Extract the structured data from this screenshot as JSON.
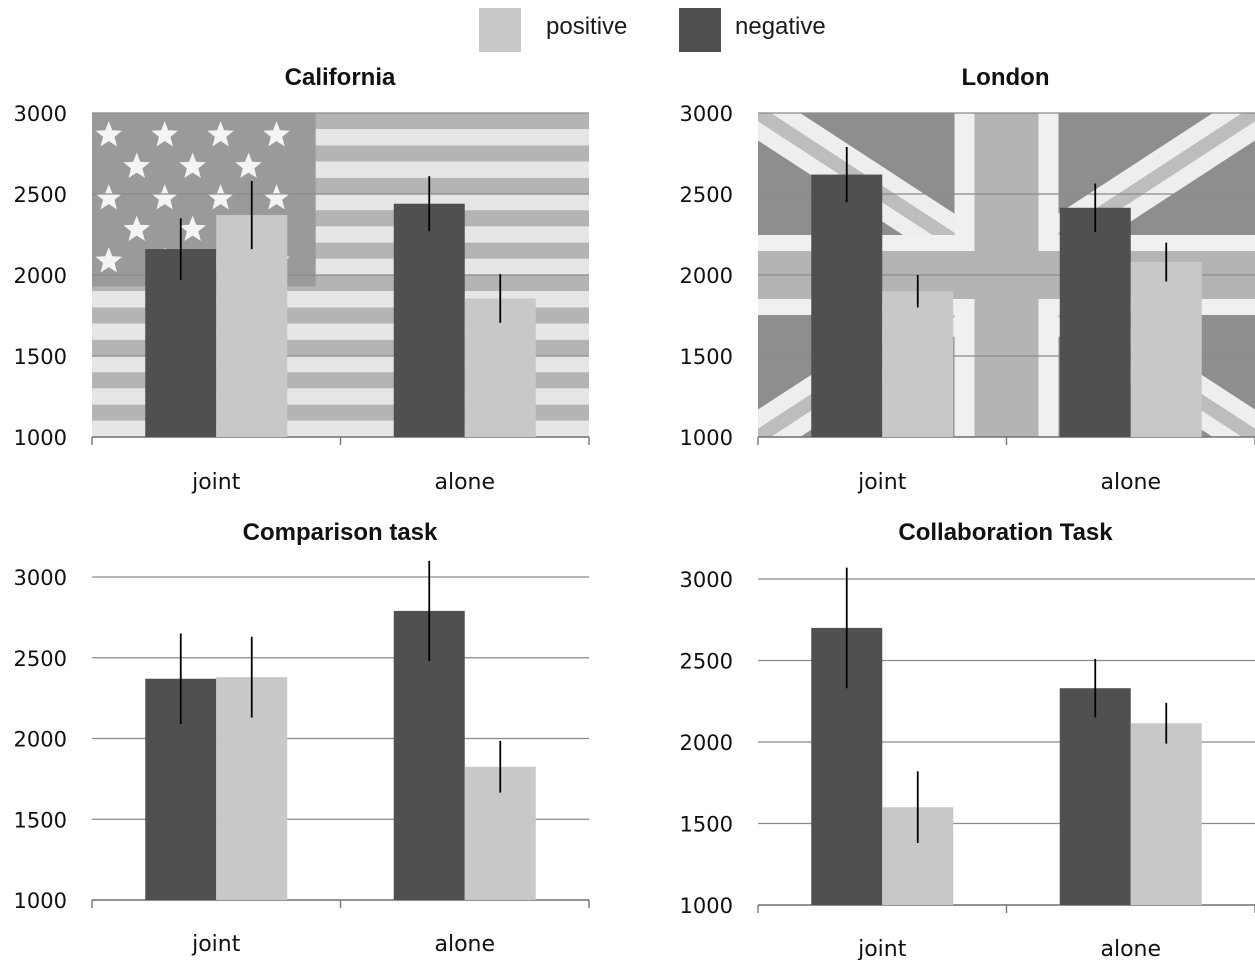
{
  "legend": {
    "items": [
      {
        "label": "positive",
        "color": "#c8c8c8"
      },
      {
        "label": "negative",
        "color": "#505050"
      }
    ]
  },
  "chart_data": [
    {
      "type": "bar",
      "title": "California",
      "background": "usa-flag",
      "categories": [
        "joint",
        "alone"
      ],
      "ylim": [
        1000,
        3000
      ],
      "yticks": [
        1000,
        1500,
        2000,
        2500,
        3000
      ],
      "grid": true,
      "series": [
        {
          "name": "negative",
          "color": "#505050",
          "values": [
            2160,
            2440
          ],
          "error": [
            190,
            170
          ]
        },
        {
          "name": "positive",
          "color": "#c8c8c8",
          "values": [
            2370,
            1855
          ],
          "error": [
            210,
            150
          ]
        }
      ]
    },
    {
      "type": "bar",
      "title": "London",
      "background": "uk-flag",
      "categories": [
        "joint",
        "alone"
      ],
      "ylim": [
        1000,
        3000
      ],
      "yticks": [
        1000,
        1500,
        2000,
        2500,
        3000
      ],
      "grid": true,
      "series": [
        {
          "name": "negative",
          "color": "#505050",
          "values": [
            2620,
            2415
          ],
          "error": [
            170,
            150
          ]
        },
        {
          "name": "positive",
          "color": "#c8c8c8",
          "values": [
            1900,
            2080
          ],
          "error": [
            100,
            120
          ]
        }
      ]
    },
    {
      "type": "bar",
      "title": "Comparison task",
      "background": "none",
      "categories": [
        "joint",
        "alone"
      ],
      "ylim": [
        1000,
        3000
      ],
      "yticks": [
        1000,
        1500,
        2000,
        2500,
        3000
      ],
      "grid": true,
      "series": [
        {
          "name": "negative",
          "color": "#505050",
          "values": [
            2370,
            2790
          ],
          "error": [
            280,
            310
          ]
        },
        {
          "name": "positive",
          "color": "#c8c8c8",
          "values": [
            2380,
            1825
          ],
          "error": [
            250,
            160
          ]
        }
      ]
    },
    {
      "type": "bar",
      "title": "Collaboration Task",
      "background": "none",
      "categories": [
        "joint",
        "alone"
      ],
      "ylim": [
        1000,
        3000
      ],
      "yticks": [
        1000,
        1500,
        2000,
        2500,
        3000
      ],
      "grid": true,
      "series": [
        {
          "name": "negative",
          "color": "#505050",
          "values": [
            2700,
            2330
          ],
          "error": [
            370,
            180
          ]
        },
        {
          "name": "positive",
          "color": "#c8c8c8",
          "values": [
            1600,
            2115
          ],
          "error": [
            220,
            125
          ]
        }
      ]
    }
  ]
}
